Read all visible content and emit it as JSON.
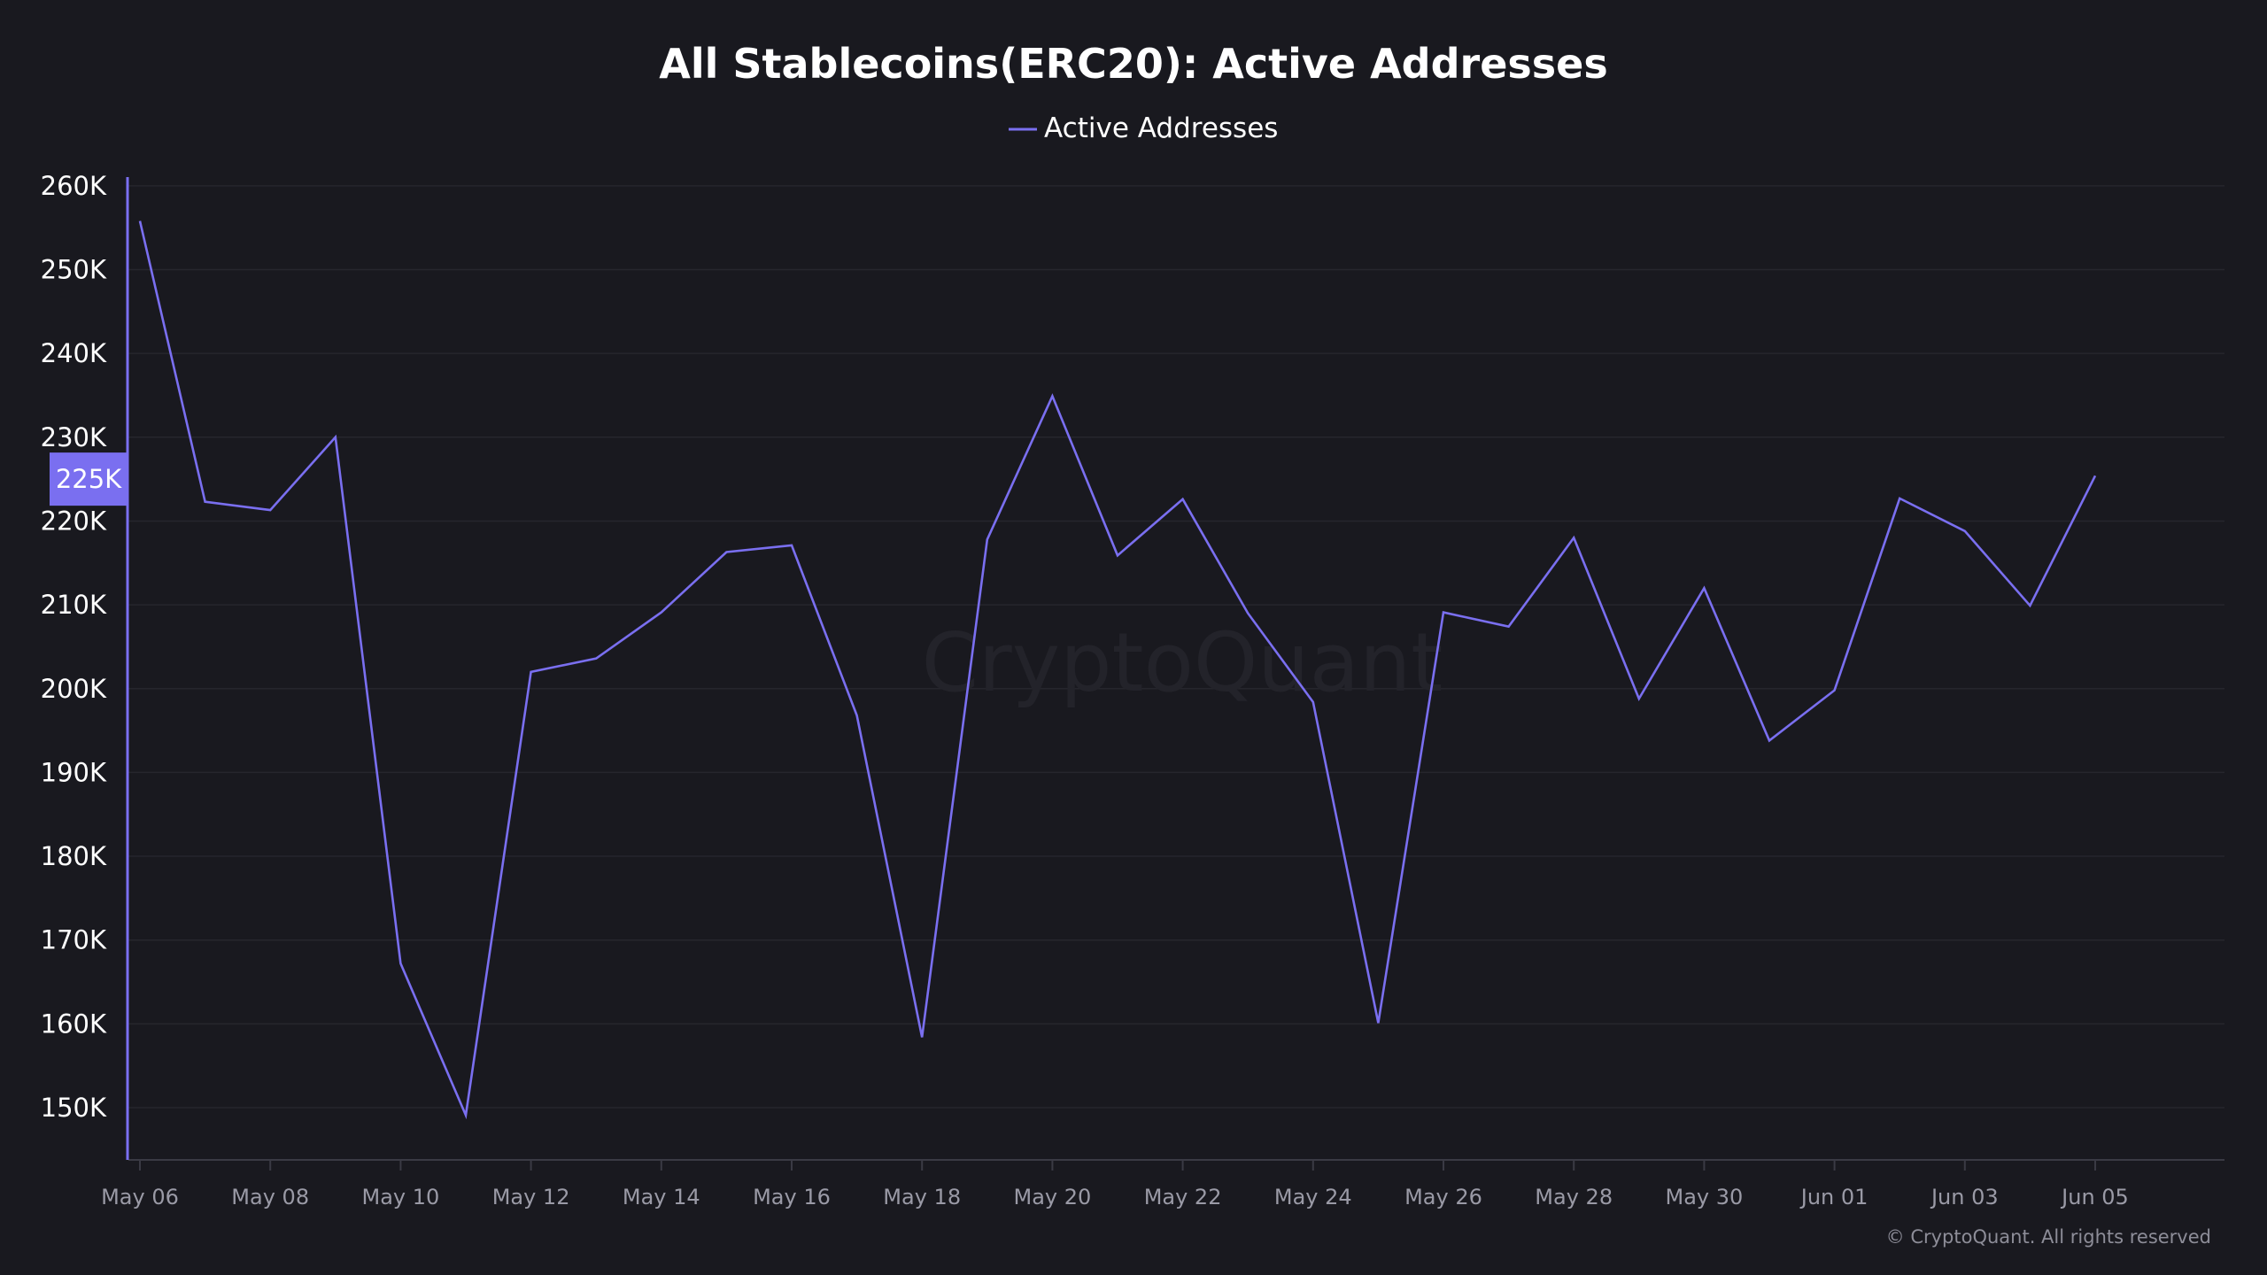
{
  "colors": {
    "background": "#19191f",
    "series": "#7a6ff0",
    "grid": "#26262d"
  },
  "watermark": "CryptoQuant",
  "credit": "© CryptoQuant. All rights reserved",
  "chart_data": {
    "type": "line",
    "title": "All Stablecoins(ERC20): Active Addresses",
    "xlabel": "",
    "ylabel": "",
    "ylim": [
      144000,
      262000
    ],
    "grid": true,
    "legend_position": "top-center",
    "x": [
      "2024-05-06",
      "2024-05-07",
      "2024-05-08",
      "2024-05-09",
      "2024-05-10",
      "2024-05-11",
      "2024-05-12",
      "2024-05-13",
      "2024-05-14",
      "2024-05-15",
      "2024-05-16",
      "2024-05-17",
      "2024-05-18",
      "2024-05-19",
      "2024-05-20",
      "2024-05-21",
      "2024-05-22",
      "2024-05-23",
      "2024-05-24",
      "2024-05-25",
      "2024-05-26",
      "2024-05-27",
      "2024-05-28",
      "2024-05-29",
      "2024-05-30",
      "2024-05-31",
      "2024-06-01",
      "2024-06-02",
      "2024-06-03",
      "2024-06-04",
      "2024-06-05"
    ],
    "x_tick_labels": [
      "May 06",
      "May 08",
      "May 10",
      "May 12",
      "May 14",
      "May 16",
      "May 18",
      "May 20",
      "May 22",
      "May 24",
      "May 26",
      "May 28",
      "May 30",
      "Jun 01",
      "Jun 03",
      "Jun 05"
    ],
    "y_tick_labels": [
      "150K",
      "160K",
      "170K",
      "180K",
      "190K",
      "200K",
      "210K",
      "220K",
      "230K",
      "240K",
      "250K",
      "260K"
    ],
    "y_ticks": [
      150000,
      160000,
      170000,
      180000,
      190000,
      200000,
      210000,
      220000,
      230000,
      240000,
      250000,
      260000
    ],
    "series": [
      {
        "name": "Active Addresses",
        "values": [
          255800,
          222300,
          221300,
          230000,
          167200,
          149100,
          202000,
          203600,
          209100,
          216300,
          217100,
          196800,
          158400,
          217800,
          234900,
          215900,
          222600,
          209000,
          198400,
          160100,
          209100,
          207400,
          218000,
          198800,
          212000,
          193800,
          199800,
          222700,
          218800,
          209900,
          225400
        ]
      }
    ],
    "hover_label": "225K",
    "hover_value": 225000
  }
}
